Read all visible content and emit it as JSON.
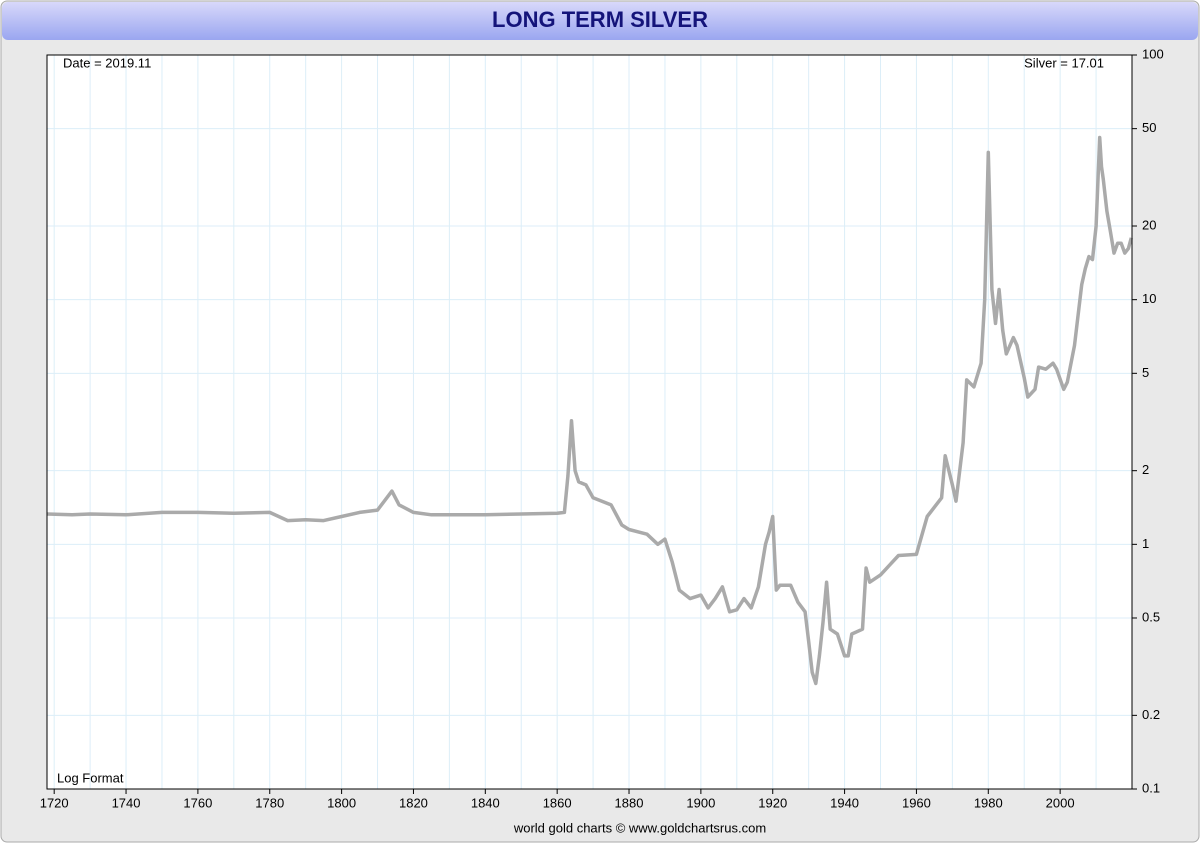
{
  "chart_data": {
    "type": "line",
    "title": "LONG TERM SILVER",
    "date_label": "Date = 2019.11",
    "value_label": "Silver = 17.01",
    "scale_note": "Log Format",
    "source": "world gold charts © www.goldchartsrus.com",
    "log_scale": true,
    "grid": true,
    "xlim": [
      1718,
      2020
    ],
    "ylim": [
      0.1,
      100
    ],
    "xticks": [
      1720,
      1740,
      1760,
      1780,
      1800,
      1820,
      1840,
      1860,
      1880,
      1900,
      1920,
      1940,
      1960,
      1980,
      2000
    ],
    "xgrid": [
      1720,
      1730,
      1740,
      1750,
      1760,
      1770,
      1780,
      1790,
      1800,
      1810,
      1820,
      1830,
      1840,
      1850,
      1860,
      1870,
      1880,
      1890,
      1900,
      1910,
      1920,
      1930,
      1940,
      1950,
      1960,
      1970,
      1980,
      1990,
      2000,
      2010
    ],
    "yticks": [
      0.1,
      0.2,
      0.5,
      1,
      2,
      5,
      10,
      20,
      50,
      100
    ],
    "x": [
      1718,
      1725,
      1730,
      1740,
      1750,
      1760,
      1770,
      1780,
      1785,
      1790,
      1795,
      1800,
      1805,
      1810,
      1814,
      1816,
      1820,
      1825,
      1830,
      1840,
      1850,
      1860,
      1862,
      1863,
      1864,
      1865,
      1866,
      1868,
      1870,
      1875,
      1878,
      1880,
      1885,
      1888,
      1890,
      1892,
      1894,
      1897,
      1900,
      1902,
      1904,
      1906,
      1908,
      1910,
      1912,
      1914,
      1916,
      1918,
      1919,
      1920,
      1921,
      1922,
      1925,
      1927,
      1929,
      1930,
      1931,
      1932,
      1933,
      1934,
      1935,
      1936,
      1938,
      1940,
      1941,
      1942,
      1945,
      1946,
      1947,
      1950,
      1955,
      1960,
      1963,
      1967,
      1968,
      1970,
      1971,
      1973,
      1974,
      1976,
      1978,
      1979,
      1980,
      1981,
      1982,
      1983,
      1984,
      1985,
      1987,
      1988,
      1990,
      1991,
      1993,
      1994,
      1996,
      1998,
      1999,
      2001,
      2002,
      2004,
      2006,
      2007,
      2008,
      2009,
      2010,
      2011,
      2011.5,
      2012,
      2013,
      2014,
      2015,
      2016,
      2017,
      2018,
      2019,
      2019.8
    ],
    "series": [
      {
        "name": "Silver",
        "color": "#aaaaaa",
        "values": [
          1.33,
          1.32,
          1.33,
          1.32,
          1.35,
          1.35,
          1.34,
          1.35,
          1.25,
          1.26,
          1.25,
          1.3,
          1.35,
          1.38,
          1.65,
          1.45,
          1.35,
          1.32,
          1.32,
          1.32,
          1.33,
          1.34,
          1.35,
          1.9,
          3.2,
          2.0,
          1.8,
          1.75,
          1.55,
          1.45,
          1.2,
          1.15,
          1.1,
          1.0,
          1.05,
          0.85,
          0.65,
          0.6,
          0.62,
          0.55,
          0.6,
          0.67,
          0.53,
          0.54,
          0.6,
          0.55,
          0.67,
          1.0,
          1.12,
          1.3,
          0.65,
          0.68,
          0.68,
          0.58,
          0.53,
          0.4,
          0.3,
          0.27,
          0.35,
          0.48,
          0.7,
          0.45,
          0.43,
          0.35,
          0.35,
          0.43,
          0.45,
          0.8,
          0.7,
          0.75,
          0.9,
          0.91,
          1.3,
          1.55,
          2.3,
          1.75,
          1.5,
          2.6,
          4.7,
          4.4,
          5.5,
          10,
          40,
          11,
          8,
          11,
          7.5,
          6,
          7,
          6.5,
          4.8,
          4,
          4.3,
          5.3,
          5.2,
          5.5,
          5.2,
          4.3,
          4.6,
          6.5,
          11.5,
          13.4,
          15,
          14.6,
          20,
          46,
          35,
          31,
          23,
          19,
          15.5,
          17,
          17,
          15.5,
          16.2,
          17.9
        ]
      }
    ]
  }
}
